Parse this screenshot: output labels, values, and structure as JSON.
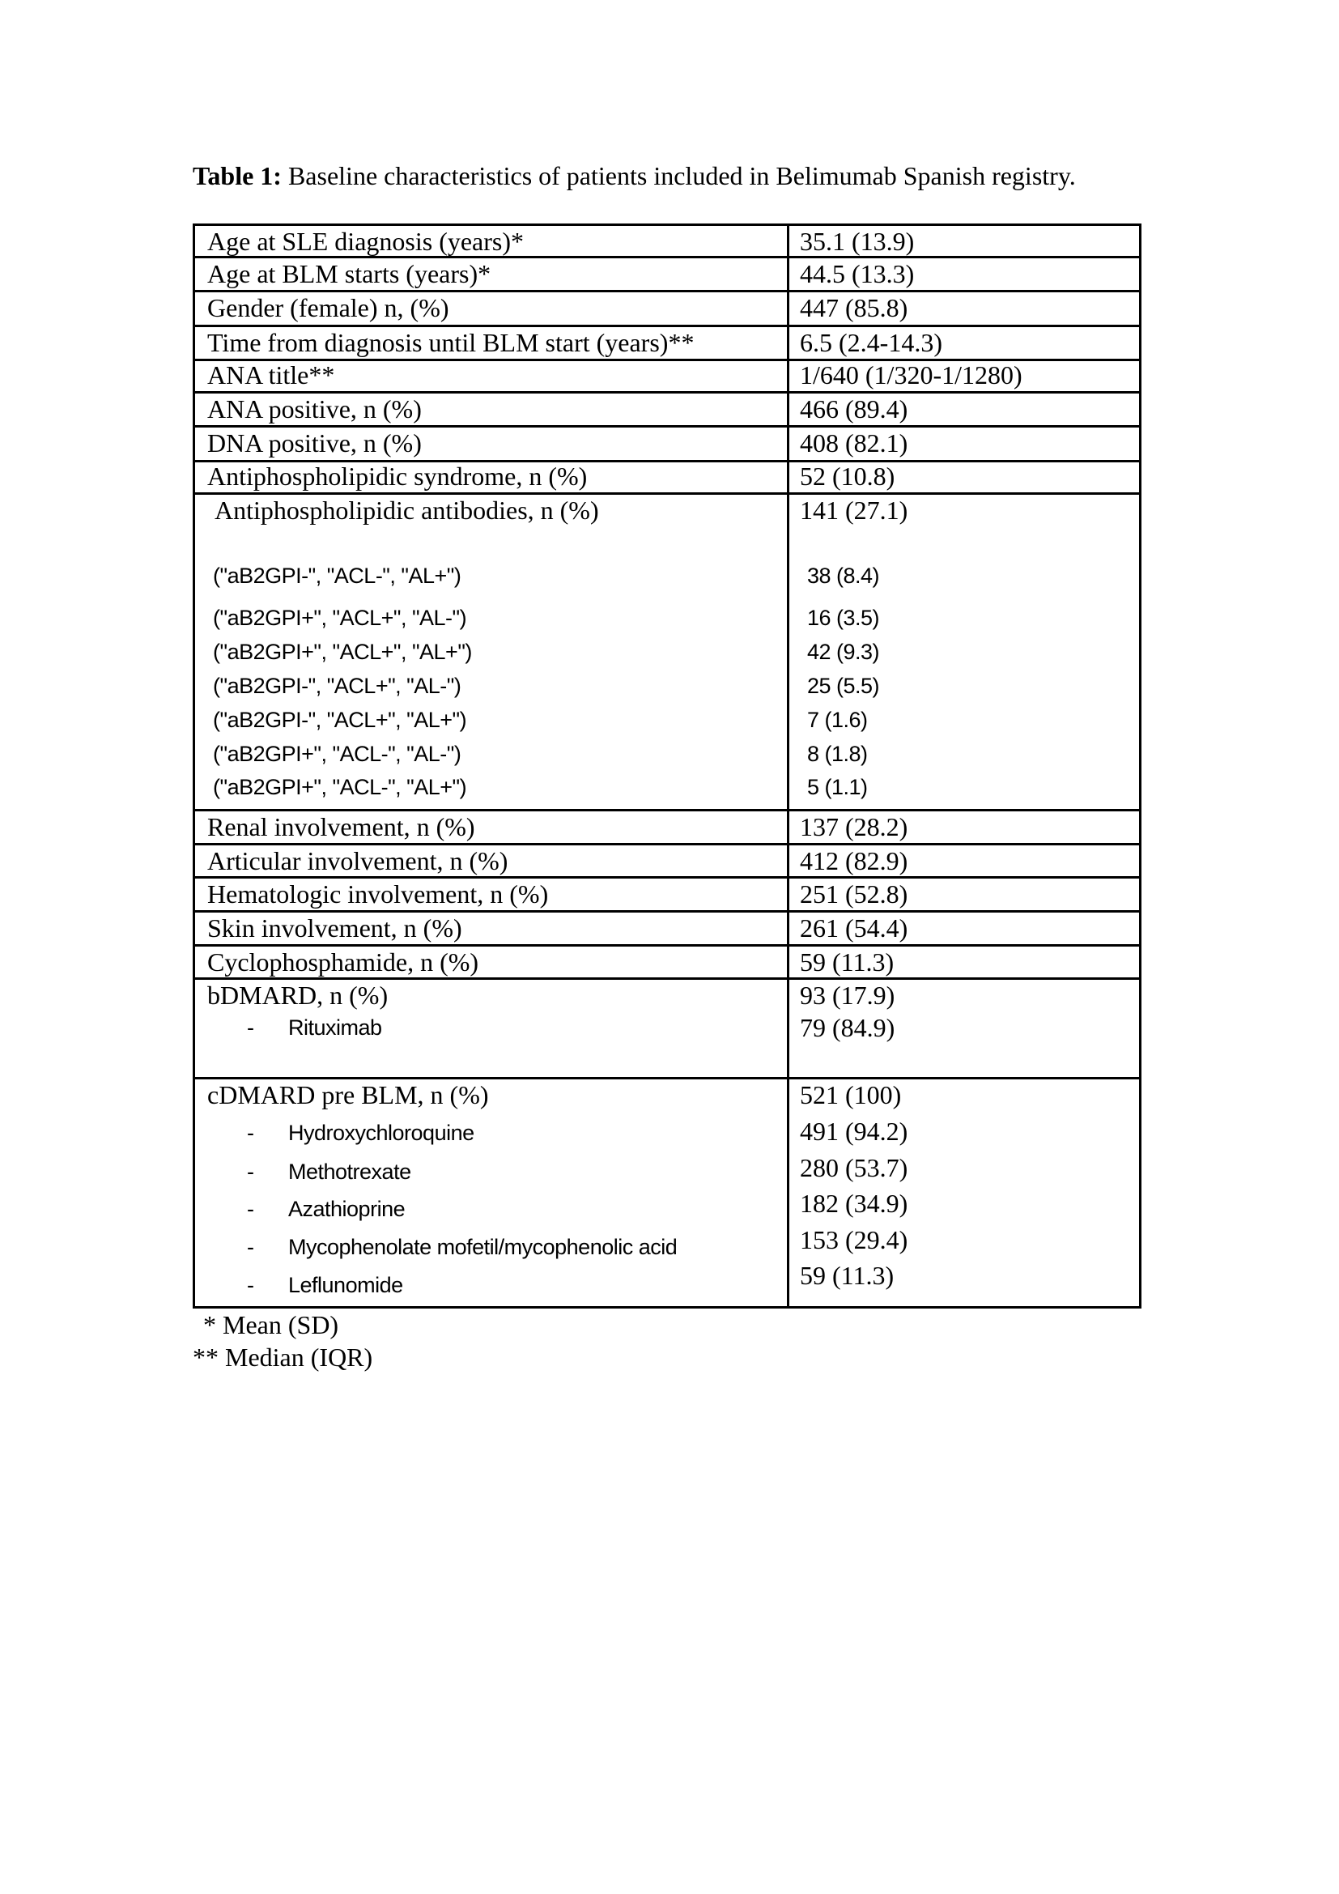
{
  "caption": {
    "label": "Table 1:",
    "text": " Baseline characteristics of patients included in Belimumab Spanish registry."
  },
  "rows": [
    {
      "label": "Age at SLE diagnosis (years)*",
      "value": "35.1 (13.9)"
    },
    {
      "label": "Age at BLM starts (years)*",
      "value": "44.5 (13.3)"
    },
    {
      "label": "Gender (female) n, (%)",
      "value": "447 (85.8)"
    },
    {
      "label": "Time from diagnosis until BLM start (years)**",
      "value": "6.5 (2.4-14.3)"
    },
    {
      "label": "ANA title**",
      "value": "1/640 (1/320-1/1280)"
    },
    {
      "label": "ANA positive, n (%)",
      "value": "466 (89.4)"
    },
    {
      "label": "DNA positive, n (%)",
      "value": "408 (82.1)"
    },
    {
      "label": "Antiphospholipidic syndrome, n (%)",
      "value": "52 (10.8)"
    }
  ],
  "antibodies": {
    "label": "Antiphospholipidic antibodies, n (%)",
    "value": "141 (27.1)",
    "items": [
      {
        "label": "(\"aB2GPI-\", \"ACL-\", \"AL+\")",
        "value": "38 (8.4)"
      },
      {
        "label": "(\"aB2GPI+\", \"ACL+\", \"AL-\")",
        "value": "16 (3.5)"
      },
      {
        "label": "(\"aB2GPI+\", \"ACL+\", \"AL+\")",
        "value": "42 (9.3)"
      },
      {
        "label": "(\"aB2GPI-\", \"ACL+\", \"AL-\")",
        "value": "25 (5.5)"
      },
      {
        "label": "(\"aB2GPI-\", \"ACL+\", \"AL+\")",
        "value": "7 (1.6)"
      },
      {
        "label": "(\"aB2GPI+\", \"ACL-\", \"AL-\")",
        "value": "8 (1.8)"
      },
      {
        "label": "(\"aB2GPI+\", \"ACL-\", \"AL+\")",
        "value": "5 (1.1)"
      }
    ]
  },
  "rows2": [
    {
      "label": "Renal involvement, n (%)",
      "value": "137 (28.2)"
    },
    {
      "label": "Articular involvement, n (%)",
      "value": "412 (82.9)"
    },
    {
      "label": "Hematologic involvement, n (%)",
      "value": "251 (52.8)"
    },
    {
      "label": "Skin involvement, n (%)",
      "value": "261 (54.4)"
    },
    {
      "label": "Cyclophosphamide, n (%)",
      "value": "59 (11.3)"
    }
  ],
  "bdmard": {
    "label": "bDMARD, n (%)",
    "value": "93 (17.9)",
    "items": [
      {
        "label": "Rituximab",
        "value": "79 (84.9)"
      }
    ]
  },
  "cdmard": {
    "label": "cDMARD pre BLM, n (%)",
    "value": "521 (100)",
    "items": [
      {
        "label": "Hydroxychloroquine",
        "value": "491 (94.2)"
      },
      {
        "label": "Methotrexate",
        "value": "280 (53.7)"
      },
      {
        "label": "Azathioprine",
        "value": "182 (34.9)"
      },
      {
        "label": "Mycophenolate mofetil/mycophenolic acid",
        "value": "153 (29.4)"
      },
      {
        "label": "Leflunomide",
        "value": "59 (11.3)"
      }
    ]
  },
  "bullet": "-",
  "footnotes": [
    "* Mean (SD)",
    "** Median (IQR)"
  ]
}
